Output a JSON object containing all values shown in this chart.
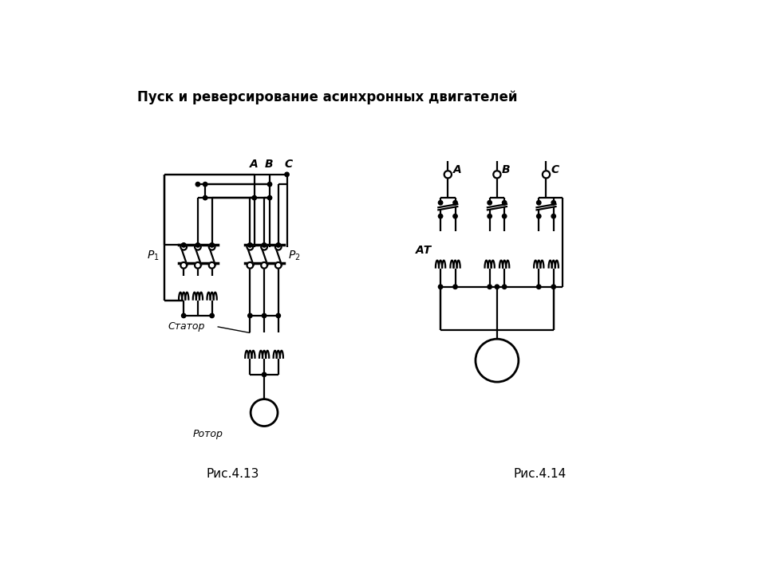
{
  "title": "Пуск и реверсирование асинхронных двигателей",
  "fig1_caption": "Рис.4.13",
  "fig2_caption": "Рис.4.14",
  "bg_color": "#ffffff",
  "line_color": "#000000",
  "title_fontsize": 12,
  "caption_fontsize": 11
}
